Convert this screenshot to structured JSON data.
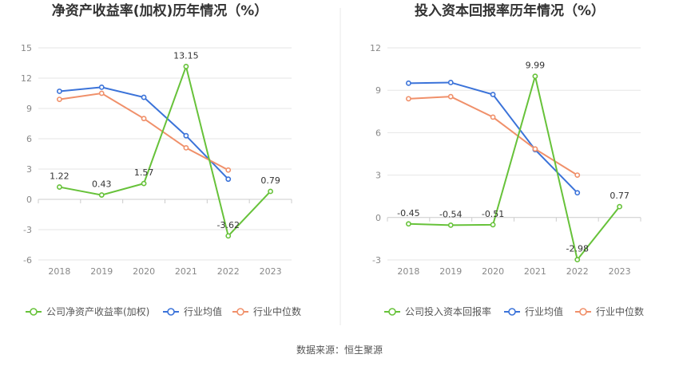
{
  "source": "数据来源：恒生聚源",
  "colors": {
    "company": "#67c23a",
    "avg": "#3b73d9",
    "median": "#f0906a"
  },
  "chart_data": [
    {
      "type": "line",
      "title": "净资产收益率(加权)历年情况（%）",
      "categories": [
        "2018",
        "2019",
        "2020",
        "2021",
        "2022",
        "2023"
      ],
      "yticks": [
        "15",
        "12",
        "9",
        "6",
        "3",
        "0",
        "-3",
        "-6"
      ],
      "ylim": [
        -6,
        15
      ],
      "legend_position": "bottom",
      "series": [
        {
          "name": "公司净资产收益率(加权)",
          "values": [
            1.22,
            0.43,
            1.57,
            13.15,
            -3.62,
            0.79
          ],
          "labels": [
            "1.22",
            "0.43",
            "1.57",
            "13.15",
            "-3.62",
            "0.79"
          ]
        },
        {
          "name": "行业均值",
          "values": [
            10.7,
            11.1,
            10.1,
            6.3,
            2.0,
            null
          ]
        },
        {
          "name": "行业中位数",
          "values": [
            9.9,
            10.5,
            8.0,
            5.1,
            2.9,
            null
          ]
        }
      ]
    },
    {
      "type": "line",
      "title": "投入资本回报率历年情况（%）",
      "categories": [
        "2018",
        "2019",
        "2020",
        "2021",
        "2022",
        "2023"
      ],
      "yticks": [
        "12",
        "9",
        "6",
        "3",
        "0",
        "-3"
      ],
      "ylim": [
        -3,
        12
      ],
      "legend_position": "bottom",
      "series": [
        {
          "name": "公司投入资本回报率",
          "values": [
            -0.45,
            -0.54,
            -0.51,
            9.99,
            -2.98,
            0.77
          ],
          "labels": [
            "-0.45",
            "-0.54",
            "-0.51",
            "9.99",
            "-2.98",
            "0.77"
          ]
        },
        {
          "name": "行业均值",
          "values": [
            9.5,
            9.55,
            8.7,
            4.8,
            1.75,
            null
          ]
        },
        {
          "name": "行业中位数",
          "values": [
            8.4,
            8.55,
            7.1,
            4.85,
            3.0,
            null
          ]
        }
      ]
    }
  ]
}
